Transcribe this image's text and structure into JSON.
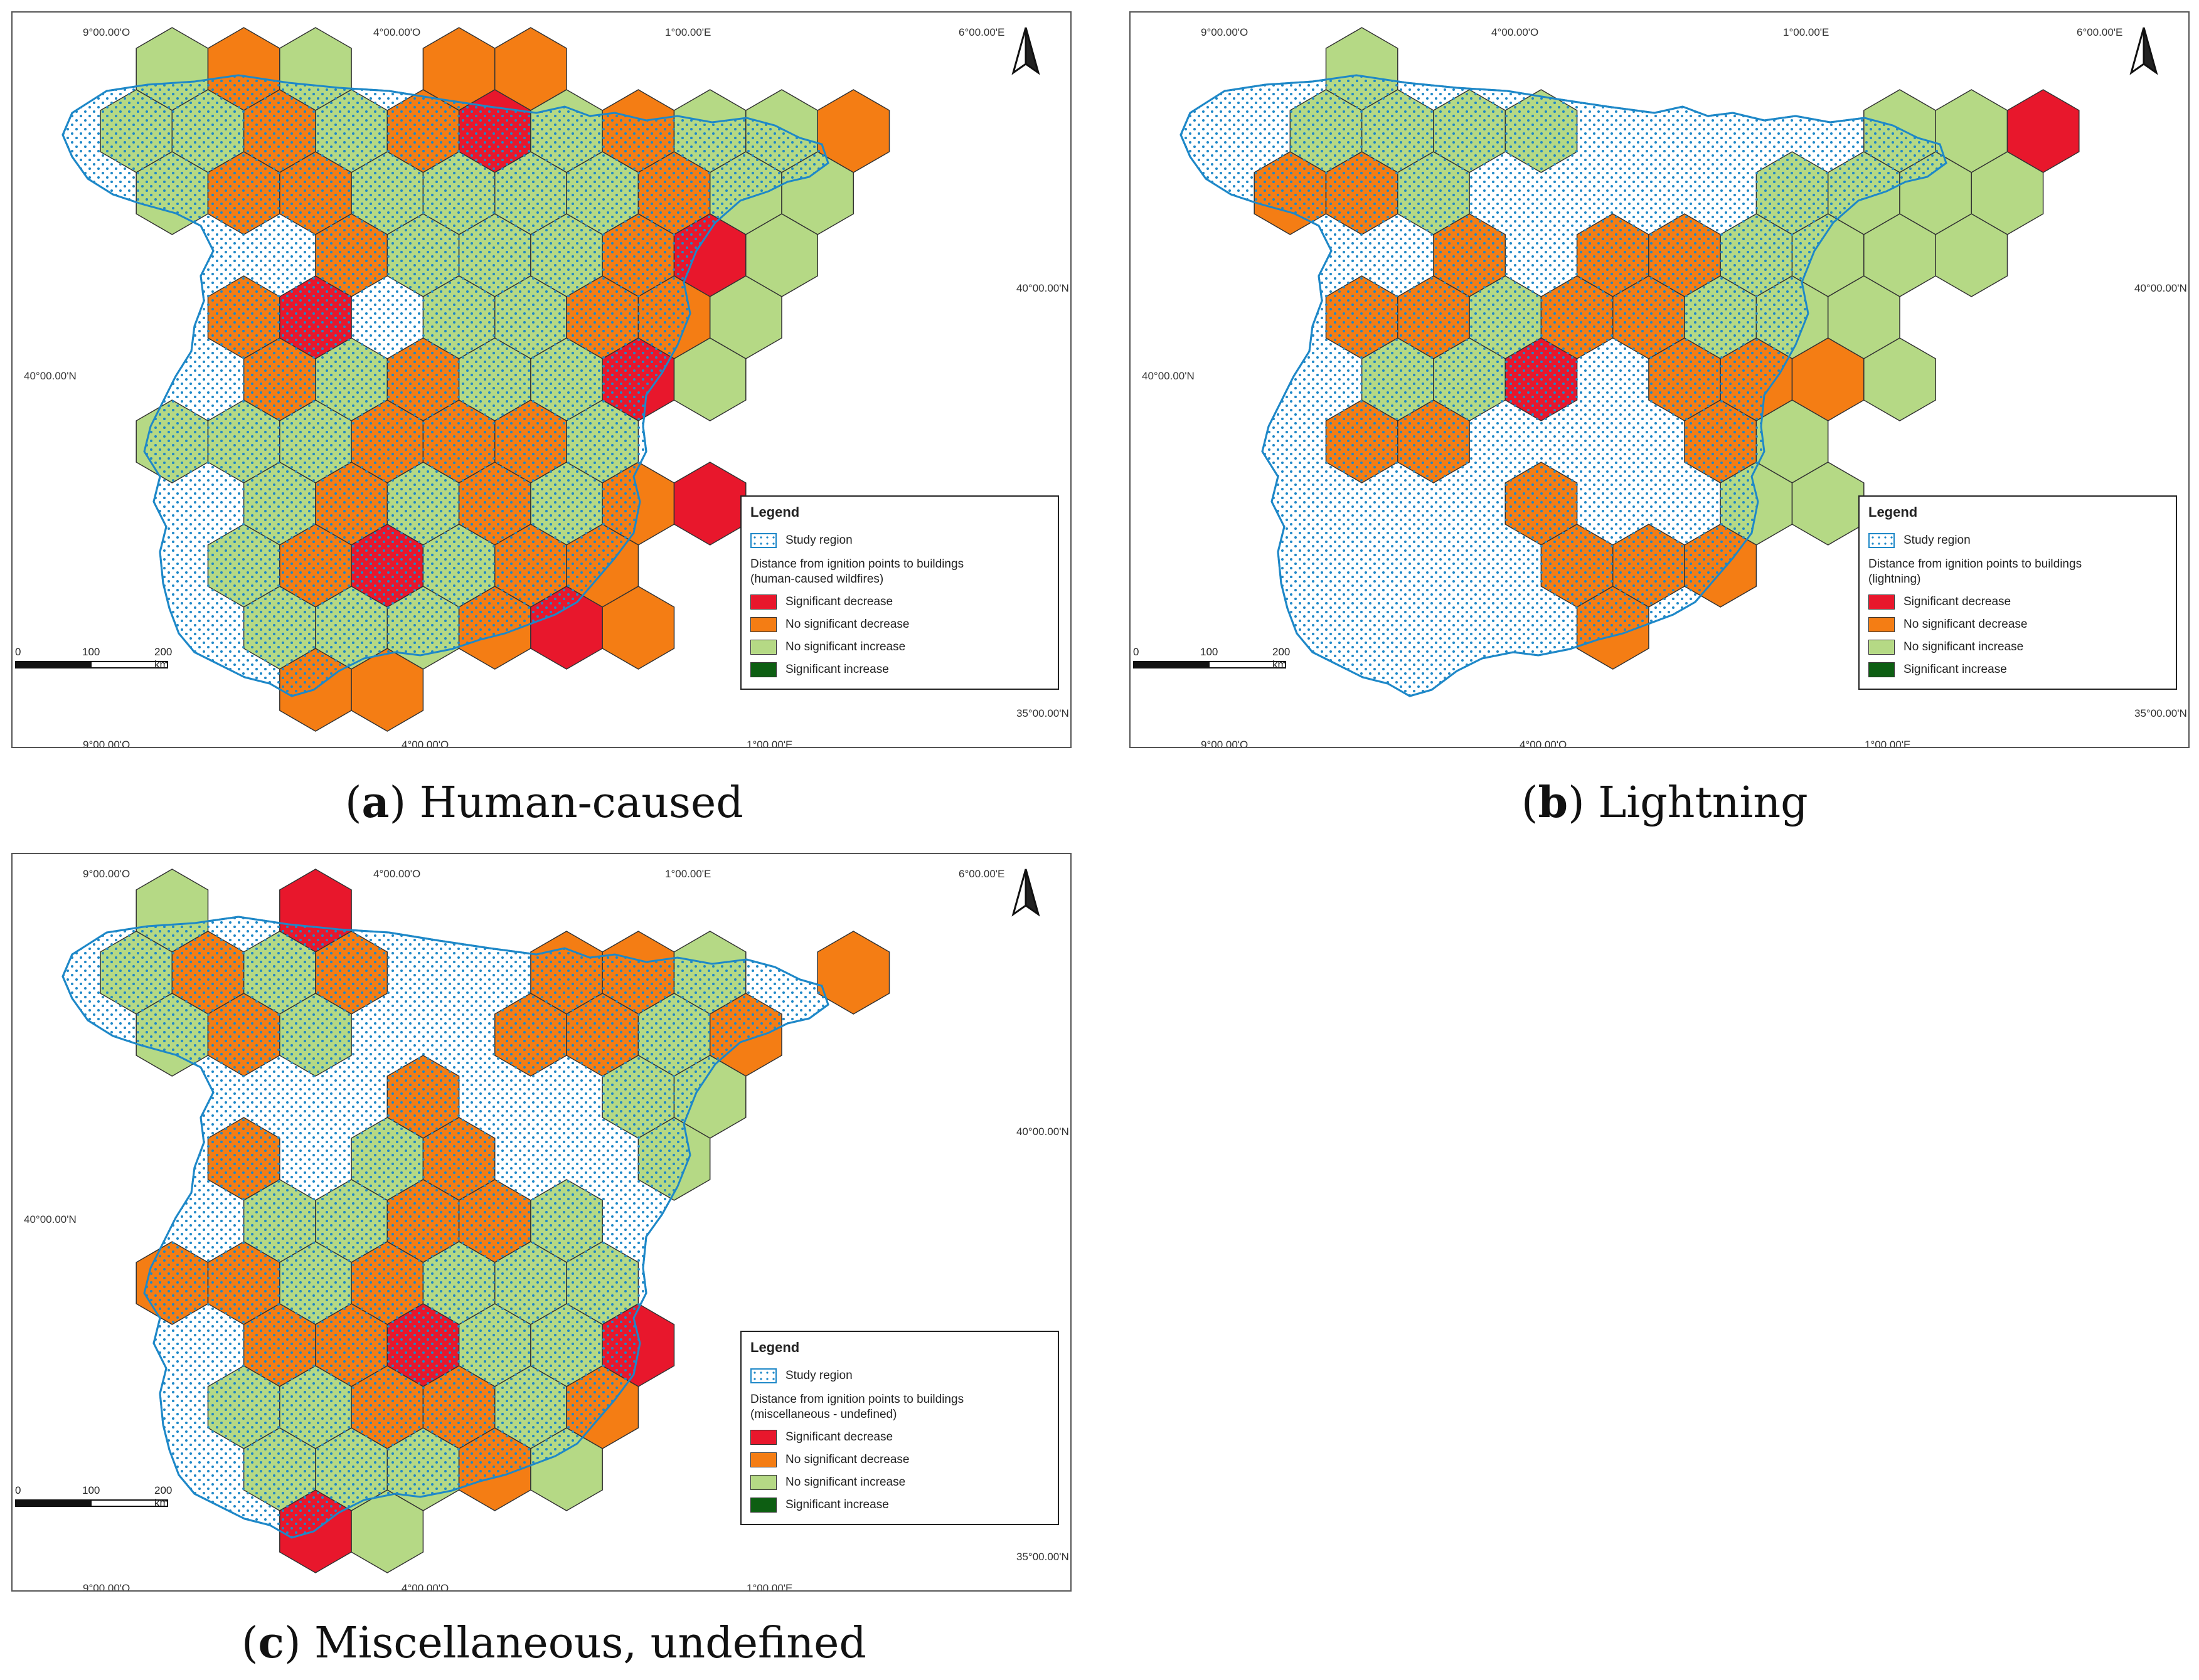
{
  "panels": [
    {
      "id": "a",
      "caption_letter": "a",
      "caption_text": "Human-caused",
      "coords": {
        "top": [
          "9°00.00'O",
          "4°00.00'O",
          "1°00.00'E",
          "6°00.00'E"
        ],
        "bottom": [
          "9°00.00'O",
          "4°00.00'O",
          "1°00.00'E"
        ],
        "left": [
          "40°00.00'N"
        ],
        "right": [
          "40°00.00'N",
          "35°00.00'N"
        ]
      },
      "legend": {
        "title": "Legend",
        "study": "Study region",
        "subtitle_line1": "Distance from ignition points to buildings",
        "subtitle_line2": "(human-caused wildfires)",
        "items": [
          "Significant decrease",
          "No significant decrease",
          "No significant increase",
          "Significant increase"
        ]
      },
      "scale": {
        "zero": "0",
        "mid": "100",
        "end": "200 km"
      },
      "hexes": [
        [
          1,
          0,
          "L"
        ],
        [
          2,
          0,
          "O"
        ],
        [
          3,
          0,
          "L"
        ],
        [
          5,
          0,
          "O"
        ],
        [
          6,
          0,
          "O"
        ],
        [
          0,
          1,
          "L"
        ],
        [
          1,
          1,
          "L"
        ],
        [
          2,
          1,
          "O"
        ],
        [
          3,
          1,
          "L"
        ],
        [
          4,
          1,
          "O"
        ],
        [
          5,
          1,
          "R"
        ],
        [
          6,
          1,
          "L"
        ],
        [
          7,
          1,
          "O"
        ],
        [
          8,
          1,
          "L"
        ],
        [
          9,
          1,
          "L"
        ],
        [
          10,
          1,
          "O"
        ],
        [
          1,
          2,
          "L"
        ],
        [
          2,
          2,
          "O"
        ],
        [
          3,
          2,
          "O"
        ],
        [
          4,
          2,
          "L"
        ],
        [
          5,
          2,
          "L"
        ],
        [
          6,
          2,
          "L"
        ],
        [
          7,
          2,
          "L"
        ],
        [
          8,
          2,
          "O"
        ],
        [
          9,
          2,
          "L"
        ],
        [
          10,
          2,
          "L"
        ],
        [
          3,
          3,
          "O"
        ],
        [
          4,
          3,
          "L"
        ],
        [
          5,
          3,
          "L"
        ],
        [
          6,
          3,
          "L"
        ],
        [
          7,
          3,
          "O"
        ],
        [
          8,
          3,
          "R"
        ],
        [
          9,
          3,
          "L"
        ],
        [
          2,
          4,
          "O"
        ],
        [
          3,
          4,
          "R"
        ],
        [
          5,
          4,
          "L"
        ],
        [
          6,
          4,
          "L"
        ],
        [
          7,
          4,
          "O"
        ],
        [
          8,
          4,
          "O"
        ],
        [
          9,
          4,
          "L"
        ],
        [
          2,
          5,
          "O"
        ],
        [
          3,
          5,
          "L"
        ],
        [
          4,
          5,
          "O"
        ],
        [
          5,
          5,
          "L"
        ],
        [
          6,
          5,
          "L"
        ],
        [
          7,
          5,
          "R"
        ],
        [
          8,
          5,
          "L"
        ],
        [
          1,
          6,
          "L"
        ],
        [
          2,
          6,
          "L"
        ],
        [
          3,
          6,
          "L"
        ],
        [
          4,
          6,
          "O"
        ],
        [
          5,
          6,
          "O"
        ],
        [
          6,
          6,
          "O"
        ],
        [
          7,
          6,
          "L"
        ],
        [
          2,
          7,
          "L"
        ],
        [
          3,
          7,
          "O"
        ],
        [
          4,
          7,
          "L"
        ],
        [
          5,
          7,
          "O"
        ],
        [
          6,
          7,
          "L"
        ],
        [
          7,
          7,
          "O"
        ],
        [
          8,
          7,
          "R"
        ],
        [
          2,
          8,
          "L"
        ],
        [
          3,
          8,
          "O"
        ],
        [
          4,
          8,
          "R"
        ],
        [
          5,
          8,
          "L"
        ],
        [
          6,
          8,
          "O"
        ],
        [
          7,
          8,
          "O"
        ],
        [
          2,
          9,
          "L"
        ],
        [
          3,
          9,
          "L"
        ],
        [
          4,
          9,
          "L"
        ],
        [
          5,
          9,
          "O"
        ],
        [
          6,
          9,
          "R"
        ],
        [
          7,
          9,
          "O"
        ],
        [
          3,
          10,
          "O"
        ],
        [
          4,
          10,
          "O"
        ]
      ]
    },
    {
      "id": "b",
      "caption_letter": "b",
      "caption_text": "Lightning",
      "coords": {
        "top": [
          "9°00.00'O",
          "4°00.00'O",
          "1°00.00'E",
          "6°00.00'E"
        ],
        "bottom": [
          "9°00.00'O",
          "4°00.00'O",
          "1°00.00'E"
        ],
        "left": [
          "40°00.00'N"
        ],
        "right": [
          "40°00.00'N",
          "35°00.00'N"
        ]
      },
      "legend": {
        "title": "Legend",
        "study": "Study region",
        "subtitle_line1": "Distance from ignition points to buildings",
        "subtitle_line2": "(lightning)",
        "items": [
          "Significant decrease",
          "No significant decrease",
          "No significant increase",
          "Significant increase"
        ]
      },
      "scale": {
        "zero": "0",
        "mid": "100",
        "end": "200 km"
      },
      "hexes": [
        [
          2,
          0,
          "L"
        ],
        [
          1,
          1,
          "L"
        ],
        [
          2,
          1,
          "L"
        ],
        [
          3,
          1,
          "L"
        ],
        [
          4,
          1,
          "L"
        ],
        [
          9,
          1,
          "L"
        ],
        [
          10,
          1,
          "L"
        ],
        [
          11,
          1,
          "R"
        ],
        [
          1,
          2,
          "O"
        ],
        [
          2,
          2,
          "O"
        ],
        [
          3,
          2,
          "L"
        ],
        [
          8,
          2,
          "L"
        ],
        [
          9,
          2,
          "L"
        ],
        [
          10,
          2,
          "L"
        ],
        [
          11,
          2,
          "L"
        ],
        [
          3,
          3,
          "O"
        ],
        [
          5,
          3,
          "O"
        ],
        [
          6,
          3,
          "O"
        ],
        [
          7,
          3,
          "L"
        ],
        [
          8,
          3,
          "L"
        ],
        [
          9,
          3,
          "L"
        ],
        [
          10,
          3,
          "L"
        ],
        [
          2,
          4,
          "O"
        ],
        [
          3,
          4,
          "O"
        ],
        [
          4,
          4,
          "L"
        ],
        [
          5,
          4,
          "O"
        ],
        [
          6,
          4,
          "O"
        ],
        [
          7,
          4,
          "L"
        ],
        [
          8,
          4,
          "L"
        ],
        [
          9,
          4,
          "L"
        ],
        [
          2,
          5,
          "L"
        ],
        [
          3,
          5,
          "L"
        ],
        [
          4,
          5,
          "R"
        ],
        [
          6,
          5,
          "O"
        ],
        [
          7,
          5,
          "O"
        ],
        [
          8,
          5,
          "O"
        ],
        [
          9,
          5,
          "L"
        ],
        [
          2,
          6,
          "O"
        ],
        [
          3,
          6,
          "O"
        ],
        [
          7,
          6,
          "O"
        ],
        [
          8,
          6,
          "L"
        ],
        [
          4,
          7,
          "O"
        ],
        [
          7,
          7,
          "L"
        ],
        [
          8,
          7,
          "L"
        ],
        [
          5,
          8,
          "O"
        ],
        [
          6,
          8,
          "O"
        ],
        [
          7,
          8,
          "O"
        ],
        [
          5,
          9,
          "O"
        ]
      ]
    },
    {
      "id": "c",
      "caption_letter": "c",
      "caption_text": "Miscellaneous, undefined",
      "coords": {
        "top": [
          "9°00.00'O",
          "4°00.00'O",
          "1°00.00'E",
          "6°00.00'E"
        ],
        "bottom": [
          "9°00.00'O",
          "4°00.00'O",
          "1°00.00'E"
        ],
        "left": [
          "40°00.00'N"
        ],
        "right": [
          "40°00.00'N",
          "35°00.00'N"
        ]
      },
      "legend": {
        "title": "Legend",
        "study": "Study region",
        "subtitle_line1": "Distance from ignition points to buildings",
        "subtitle_line2": "(miscellaneous - undefined)",
        "items": [
          "Significant decrease",
          "No significant decrease",
          "No significant increase",
          "Significant increase"
        ]
      },
      "scale": {
        "zero": "0",
        "mid": "100",
        "end": "200 km"
      },
      "hexes": [
        [
          1,
          0,
          "L"
        ],
        [
          3,
          0,
          "R"
        ],
        [
          0,
          1,
          "L"
        ],
        [
          1,
          1,
          "O"
        ],
        [
          2,
          1,
          "L"
        ],
        [
          3,
          1,
          "O"
        ],
        [
          6,
          1,
          "O"
        ],
        [
          7,
          1,
          "O"
        ],
        [
          8,
          1,
          "L"
        ],
        [
          10,
          1,
          "O"
        ],
        [
          1,
          2,
          "L"
        ],
        [
          2,
          2,
          "O"
        ],
        [
          3,
          2,
          "L"
        ],
        [
          6,
          2,
          "O"
        ],
        [
          7,
          2,
          "O"
        ],
        [
          8,
          2,
          "L"
        ],
        [
          9,
          2,
          "O"
        ],
        [
          4,
          3,
          "O"
        ],
        [
          7,
          3,
          "L"
        ],
        [
          8,
          3,
          "L"
        ],
        [
          2,
          4,
          "O"
        ],
        [
          4,
          4,
          "L"
        ],
        [
          5,
          4,
          "O"
        ],
        [
          8,
          4,
          "L"
        ],
        [
          2,
          5,
          "L"
        ],
        [
          3,
          5,
          "L"
        ],
        [
          4,
          5,
          "O"
        ],
        [
          5,
          5,
          "O"
        ],
        [
          6,
          5,
          "L"
        ],
        [
          1,
          6,
          "O"
        ],
        [
          2,
          6,
          "O"
        ],
        [
          3,
          6,
          "L"
        ],
        [
          4,
          6,
          "O"
        ],
        [
          5,
          6,
          "L"
        ],
        [
          6,
          6,
          "L"
        ],
        [
          7,
          6,
          "L"
        ],
        [
          2,
          7,
          "O"
        ],
        [
          3,
          7,
          "O"
        ],
        [
          4,
          7,
          "R"
        ],
        [
          5,
          7,
          "L"
        ],
        [
          6,
          7,
          "L"
        ],
        [
          7,
          7,
          "R"
        ],
        [
          2,
          8,
          "L"
        ],
        [
          3,
          8,
          "L"
        ],
        [
          4,
          8,
          "O"
        ],
        [
          5,
          8,
          "O"
        ],
        [
          6,
          8,
          "L"
        ],
        [
          7,
          8,
          "O"
        ],
        [
          2,
          9,
          "L"
        ],
        [
          3,
          9,
          "L"
        ],
        [
          4,
          9,
          "L"
        ],
        [
          5,
          9,
          "O"
        ],
        [
          6,
          9,
          "L"
        ],
        [
          3,
          10,
          "R"
        ],
        [
          4,
          10,
          "L"
        ]
      ]
    }
  ],
  "colors": {
    "significant_decrease": "#e8172c",
    "no_significant_decrease": "#f47d14",
    "no_significant_increase": "#b5d985",
    "significant_increase": "#0d5e12",
    "study_region": "#1e88c8"
  }
}
